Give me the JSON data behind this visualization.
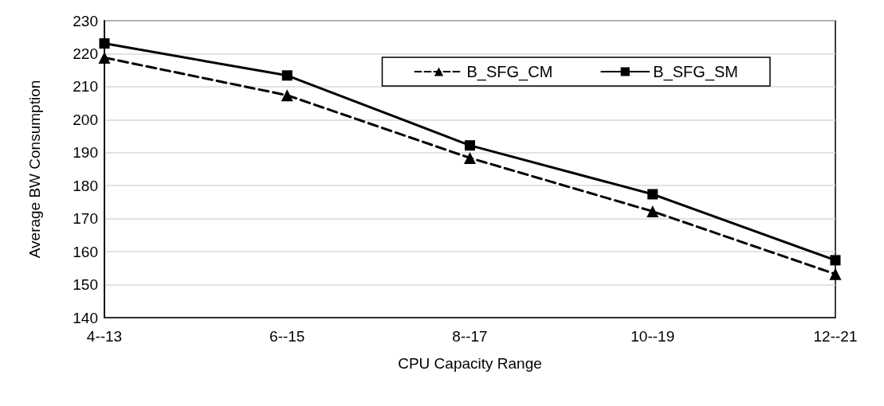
{
  "chart_data": {
    "type": "line",
    "xlabel": "CPU Capacity Range",
    "ylabel": "Average BW Consumption",
    "categories": [
      "4--13",
      "6--15",
      "8--17",
      "10--19",
      "12--21"
    ],
    "series": [
      {
        "name": "B_SFG_CM",
        "color": "#000000",
        "marker": "triangle",
        "line_style": "dashed",
        "values": [
          218.8,
          207.4,
          188.4,
          172.2,
          153.2
        ]
      },
      {
        "name": "B_SFG_SM",
        "color": "#000000",
        "marker": "square",
        "line_style": "solid",
        "values": [
          223.1,
          213.4,
          192.2,
          177.4,
          157.4
        ]
      }
    ],
    "ylim": [
      140,
      230
    ],
    "yticks": [
      140,
      150,
      160,
      170,
      180,
      190,
      200,
      210,
      220,
      230
    ],
    "grid": "y",
    "legend": "top right"
  }
}
